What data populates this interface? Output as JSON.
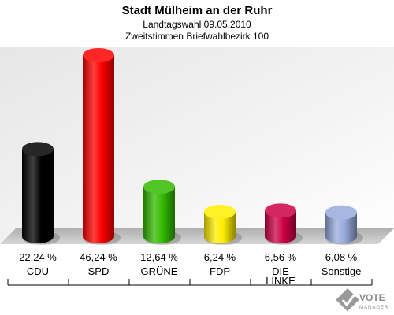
{
  "chart_data": {
    "type": "bar",
    "title": "Stadt Mülheim an der Ruhr",
    "subtitle_1": "Landtagswahl 09.05.2010",
    "subtitle_2": "Zweitstimmen Briefwahlbezirk 100",
    "categories": [
      "CDU",
      "SPD",
      "GRÜNE",
      "FDP",
      "DIE LINKE",
      "Sonstige"
    ],
    "values": [
      22.24,
      46.24,
      12.64,
      6.24,
      6.56,
      6.08
    ],
    "value_labels": [
      "22,24 %",
      "46,24 %",
      "12,64 %",
      "6,24 %",
      "6,56 %",
      "6,08 %"
    ],
    "colors": [
      "#000000",
      "#ff0000",
      "#33bb00",
      "#ffee00",
      "#cc0044",
      "#99aadd"
    ],
    "legend": "none",
    "grid": false
  },
  "watermark": {
    "text": "VOTE",
    "subtext": "MANAGER"
  }
}
